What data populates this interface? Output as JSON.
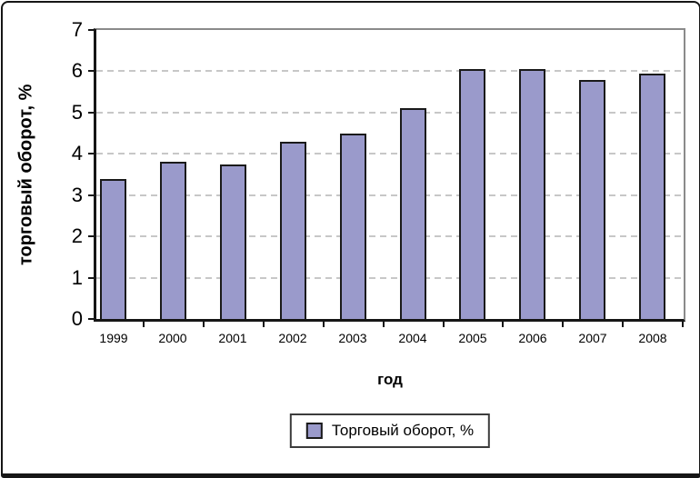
{
  "chart_data": {
    "type": "bar",
    "title": "",
    "categories": [
      "1999",
      "2000",
      "2001",
      "2002",
      "2003",
      "2004",
      "2005",
      "2006",
      "2007",
      "2008"
    ],
    "values": [
      3.4,
      3.8,
      3.75,
      4.3,
      4.5,
      5.1,
      6.05,
      6.05,
      5.8,
      5.95
    ],
    "ylabel": "торговый оборот, %",
    "xlabel": "год",
    "legend": [
      {
        "label": "Торговый оборот, %"
      }
    ],
    "legend_position": "bottom-center",
    "ylim": [
      0,
      7
    ],
    "ytick_step": 1,
    "yticks": [
      0,
      1,
      2,
      3,
      4,
      5,
      6,
      7
    ],
    "grid": "horizontal-dashed",
    "colors": {
      "bar_fill": "#9A9ACB",
      "bar_border": "#1a1a1a",
      "gridline": "#c7c7c7",
      "axis": "#161616",
      "plot_border": "#8a8a8a"
    }
  }
}
